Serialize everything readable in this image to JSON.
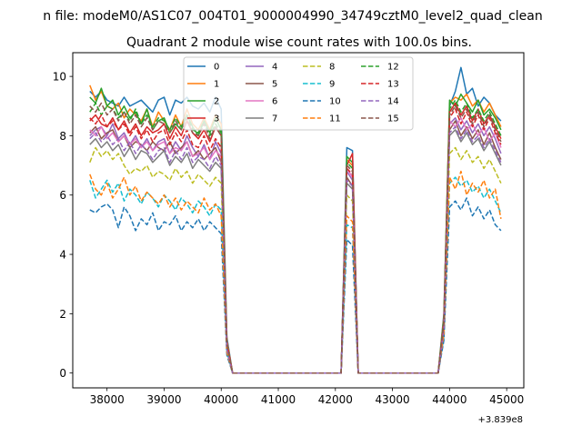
{
  "figure": {
    "suptitle": "n file: modeM0/AS1C07_004T01_9000004990_34749cztM0_level2_quad_clean",
    "offset_text": "+3.839e8"
  },
  "chart_data": {
    "type": "line",
    "title": "Quadrant 2 module wise count rates with 100.0s bins.",
    "xlabel": "",
    "ylabel": "",
    "xlim": [
      37400,
      45300
    ],
    "ylim": [
      -0.5,
      10.8
    ],
    "xticks": [
      38000,
      39000,
      40000,
      41000,
      42000,
      43000,
      44000,
      45000
    ],
    "yticks": [
      0,
      2,
      4,
      6,
      8,
      10
    ],
    "grid": false,
    "legend": {
      "placement": "top-center",
      "columns": 4
    },
    "colors": [
      "#1f77b4",
      "#ff7f0e",
      "#2ca02c",
      "#d62728",
      "#9467bd",
      "#8c564b",
      "#e377c2",
      "#7f7f7f",
      "#bcbd22",
      "#17becf",
      "#1f77b4",
      "#ff7f0e",
      "#2ca02c",
      "#d62728",
      "#9467bd",
      "#8c564b"
    ],
    "x": [
      37700,
      37800,
      37900,
      38000,
      38100,
      38200,
      38300,
      38400,
      38500,
      38600,
      38700,
      38800,
      38900,
      39000,
      39100,
      39200,
      39300,
      39400,
      39500,
      39600,
      39700,
      39800,
      39900,
      40000,
      40100,
      40200,
      40300,
      40400,
      40500,
      40600,
      40700,
      40800,
      40900,
      41000,
      41100,
      41200,
      41300,
      41400,
      41500,
      41600,
      41700,
      41800,
      41900,
      42000,
      42100,
      42200,
      42300,
      42400,
      42500,
      42600,
      42700,
      42800,
      42900,
      43000,
      43100,
      43200,
      43300,
      43400,
      43500,
      43600,
      43700,
      43800,
      43900,
      44000,
      44100,
      44200,
      44300,
      44400,
      44500,
      44600,
      44700,
      44800,
      44900
    ],
    "series": [
      {
        "name": "0",
        "style": "solid",
        "values": [
          9.5,
          9.3,
          9.5,
          9.2,
          9.1,
          9.0,
          9.3,
          9.0,
          9.1,
          9.2,
          9.0,
          8.8,
          9.2,
          9.3,
          8.7,
          9.2,
          9.1,
          9.3,
          9.0,
          8.9,
          9.1,
          8.8,
          9.3,
          8.9,
          1.2,
          0,
          0,
          0,
          0,
          0,
          0,
          0,
          0,
          0,
          0,
          0,
          0,
          0,
          0,
          0,
          0,
          0,
          0,
          0,
          0,
          7.6,
          7.5,
          0,
          0,
          0,
          0,
          0,
          0,
          0,
          0,
          0,
          0,
          0,
          0,
          0,
          0,
          0,
          2.0,
          9.0,
          9.5,
          10.3,
          9.4,
          9.6,
          9.0,
          9.3,
          9.1,
          8.7,
          8.5
        ]
      },
      {
        "name": "1",
        "style": "solid",
        "values": [
          9.7,
          9.2,
          9.5,
          9.0,
          8.9,
          9.1,
          8.6,
          8.9,
          8.7,
          8.5,
          8.9,
          8.3,
          8.8,
          8.5,
          8.2,
          8.7,
          8.3,
          8.9,
          8.4,
          8.2,
          8.6,
          8.2,
          8.7,
          8.4,
          1.1,
          0,
          0,
          0,
          0,
          0,
          0,
          0,
          0,
          0,
          0,
          0,
          0,
          0,
          0,
          0,
          0,
          0,
          0,
          0,
          0,
          7.2,
          7.0,
          0,
          0,
          0,
          0,
          0,
          0,
          0,
          0,
          0,
          0,
          0,
          0,
          0,
          0,
          0,
          1.9,
          9.1,
          9.3,
          9.2,
          9.4,
          9.0,
          9.2,
          8.8,
          9.1,
          8.7,
          8.3
        ]
      },
      {
        "name": "2",
        "style": "solid",
        "values": [
          9.3,
          9.1,
          9.6,
          9.0,
          9.2,
          8.7,
          9.0,
          8.6,
          8.8,
          8.4,
          8.9,
          8.2,
          8.5,
          8.6,
          8.1,
          8.4,
          8.2,
          8.7,
          8.3,
          8.0,
          8.5,
          8.1,
          8.6,
          8.2,
          1.0,
          0,
          0,
          0,
          0,
          0,
          0,
          0,
          0,
          0,
          0,
          0,
          0,
          0,
          0,
          0,
          0,
          0,
          0,
          0,
          0,
          7.3,
          7.1,
          0,
          0,
          0,
          0,
          0,
          0,
          0,
          0,
          0,
          0,
          0,
          0,
          0,
          0,
          0,
          1.8,
          9.2,
          9.0,
          9.4,
          9.1,
          8.8,
          9.2,
          8.7,
          8.9,
          8.6,
          8.2
        ]
      },
      {
        "name": "3",
        "style": "solid",
        "values": [
          8.5,
          8.7,
          8.4,
          8.3,
          8.6,
          8.2,
          8.5,
          8.1,
          8.4,
          8.0,
          8.3,
          8.1,
          8.2,
          8.4,
          7.9,
          8.3,
          8.0,
          8.5,
          8.1,
          7.9,
          8.2,
          7.8,
          8.3,
          8.0,
          1.0,
          0,
          0,
          0,
          0,
          0,
          0,
          0,
          0,
          0,
          0,
          0,
          0,
          0,
          0,
          0,
          0,
          0,
          0,
          0,
          0,
          7.0,
          7.4,
          0,
          0,
          0,
          0,
          0,
          0,
          0,
          0,
          0,
          0,
          0,
          0,
          0,
          0,
          0,
          1.7,
          8.8,
          9.1,
          8.7,
          9.0,
          8.5,
          8.9,
          8.4,
          8.7,
          8.3,
          7.9
        ]
      },
      {
        "name": "4",
        "style": "solid",
        "values": [
          8.0,
          8.2,
          8.3,
          8.0,
          8.4,
          7.9,
          8.1,
          7.7,
          8.0,
          7.6,
          7.9,
          7.5,
          7.8,
          7.9,
          7.4,
          7.8,
          7.5,
          8.0,
          7.6,
          7.3,
          7.7,
          7.2,
          7.8,
          7.4,
          0.9,
          0,
          0,
          0,
          0,
          0,
          0,
          0,
          0,
          0,
          0,
          0,
          0,
          0,
          0,
          0,
          0,
          0,
          0,
          0,
          0,
          6.8,
          6.5,
          0,
          0,
          0,
          0,
          0,
          0,
          0,
          0,
          0,
          0,
          0,
          0,
          0,
          0,
          0,
          1.6,
          8.4,
          8.6,
          8.2,
          8.5,
          8.1,
          8.4,
          8.0,
          8.3,
          7.9,
          7.4
        ]
      },
      {
        "name": "5",
        "style": "solid",
        "values": [
          8.1,
          8.3,
          7.9,
          8.1,
          8.2,
          7.8,
          8.0,
          7.6,
          7.8,
          7.7,
          7.5,
          7.8,
          7.6,
          7.5,
          7.8,
          7.4,
          7.6,
          7.8,
          7.3,
          7.5,
          7.2,
          7.4,
          7.6,
          7.1,
          0.9,
          0,
          0,
          0,
          0,
          0,
          0,
          0,
          0,
          0,
          0,
          0,
          0,
          0,
          0,
          0,
          0,
          0,
          0,
          0,
          0,
          6.6,
          6.3,
          0,
          0,
          0,
          0,
          0,
          0,
          0,
          0,
          0,
          0,
          0,
          0,
          0,
          0,
          0,
          1.5,
          8.2,
          8.5,
          8.0,
          8.3,
          7.9,
          8.2,
          7.7,
          8.1,
          7.6,
          7.2
        ]
      },
      {
        "name": "6",
        "style": "solid",
        "values": [
          8.2,
          8.0,
          8.3,
          7.9,
          8.1,
          7.8,
          8.0,
          7.7,
          7.9,
          7.6,
          7.8,
          7.5,
          7.7,
          7.8,
          7.4,
          7.6,
          7.5,
          7.8,
          7.3,
          7.4,
          7.6,
          7.2,
          7.5,
          7.3,
          0.9,
          0,
          0,
          0,
          0,
          0,
          0,
          0,
          0,
          0,
          0,
          0,
          0,
          0,
          0,
          0,
          0,
          0,
          0,
          0,
          0,
          6.9,
          6.6,
          0,
          0,
          0,
          0,
          0,
          0,
          0,
          0,
          0,
          0,
          0,
          0,
          0,
          0,
          0,
          1.6,
          8.5,
          8.3,
          8.6,
          8.2,
          8.4,
          8.0,
          8.3,
          7.8,
          8.1,
          7.6
        ]
      },
      {
        "name": "7",
        "style": "solid",
        "values": [
          7.7,
          7.9,
          7.6,
          7.8,
          7.5,
          7.7,
          7.3,
          7.6,
          7.2,
          7.5,
          7.4,
          7.1,
          7.3,
          7.5,
          7.0,
          7.3,
          7.1,
          7.4,
          6.9,
          7.2,
          7.0,
          6.8,
          7.1,
          6.9,
          0.8,
          0,
          0,
          0,
          0,
          0,
          0,
          0,
          0,
          0,
          0,
          0,
          0,
          0,
          0,
          0,
          0,
          0,
          0,
          0,
          0,
          6.4,
          6.2,
          0,
          0,
          0,
          0,
          0,
          0,
          0,
          0,
          0,
          0,
          0,
          0,
          0,
          0,
          0,
          1.5,
          8.0,
          8.2,
          7.8,
          8.1,
          7.7,
          7.9,
          7.5,
          7.8,
          7.4,
          7.0
        ]
      },
      {
        "name": "8",
        "style": "dashed",
        "values": [
          7.1,
          7.6,
          7.3,
          7.5,
          7.2,
          7.4,
          7.0,
          6.7,
          6.9,
          6.8,
          7.0,
          6.6,
          6.8,
          6.7,
          6.5,
          6.9,
          6.6,
          6.8,
          6.4,
          6.7,
          6.5,
          6.3,
          6.6,
          6.4,
          0.8,
          0,
          0,
          0,
          0,
          0,
          0,
          0,
          0,
          0,
          0,
          0,
          0,
          0,
          0,
          0,
          0,
          0,
          0,
          0,
          0,
          6.0,
          5.8,
          0,
          0,
          0,
          0,
          0,
          0,
          0,
          0,
          0,
          0,
          0,
          0,
          0,
          0,
          0,
          1.4,
          7.4,
          7.6,
          7.2,
          7.5,
          7.1,
          7.3,
          6.9,
          7.2,
          6.8,
          6.4
        ]
      },
      {
        "name": "9",
        "style": "dashed",
        "values": [
          6.5,
          5.9,
          6.2,
          6.5,
          6.1,
          6.4,
          5.8,
          6.2,
          6.0,
          5.7,
          6.1,
          5.9,
          5.6,
          6.0,
          5.8,
          5.5,
          5.9,
          5.7,
          5.4,
          5.8,
          5.6,
          5.3,
          5.7,
          5.5,
          0.7,
          0,
          0,
          0,
          0,
          0,
          0,
          0,
          0,
          0,
          0,
          0,
          0,
          0,
          0,
          0,
          0,
          0,
          0,
          0,
          0,
          5.0,
          4.9,
          0,
          0,
          0,
          0,
          0,
          0,
          0,
          0,
          0,
          0,
          0,
          0,
          0,
          0,
          0,
          1.2,
          6.4,
          6.6,
          6.3,
          6.5,
          6.1,
          6.3,
          5.9,
          6.2,
          5.8,
          5.4
        ]
      },
      {
        "name": "10",
        "style": "dashed",
        "values": [
          5.5,
          5.4,
          5.6,
          5.7,
          5.5,
          4.9,
          5.6,
          5.3,
          4.8,
          5.2,
          5.0,
          5.4,
          4.8,
          5.1,
          5.0,
          5.3,
          4.8,
          5.1,
          4.9,
          5.2,
          4.8,
          5.1,
          4.9,
          4.7,
          0.6,
          0,
          0,
          0,
          0,
          0,
          0,
          0,
          0,
          0,
          0,
          0,
          0,
          0,
          0,
          0,
          0,
          0,
          0,
          0,
          0,
          4.5,
          4.3,
          0,
          0,
          0,
          0,
          0,
          0,
          0,
          0,
          0,
          0,
          0,
          0,
          0,
          0,
          0,
          1.1,
          5.6,
          5.8,
          5.5,
          5.9,
          5.3,
          5.6,
          5.2,
          5.5,
          5.0,
          4.8
        ]
      },
      {
        "name": "11",
        "style": "dashed",
        "values": [
          6.7,
          6.2,
          6.0,
          6.4,
          5.9,
          6.2,
          6.6,
          6.0,
          6.3,
          5.8,
          6.1,
          5.9,
          5.7,
          6.0,
          5.6,
          5.9,
          5.5,
          5.8,
          5.6,
          5.4,
          5.9,
          5.5,
          5.7,
          5.3,
          0.7,
          0,
          0,
          0,
          0,
          0,
          0,
          0,
          0,
          0,
          0,
          0,
          0,
          0,
          0,
          0,
          0,
          0,
          0,
          0,
          0,
          5.3,
          5.1,
          0,
          0,
          0,
          0,
          0,
          0,
          0,
          0,
          0,
          0,
          0,
          0,
          0,
          0,
          0,
          1.3,
          6.6,
          6.2,
          6.8,
          6.0,
          6.4,
          6.1,
          6.5,
          5.9,
          6.2,
          5.2
        ]
      },
      {
        "name": "12",
        "style": "dashed",
        "values": [
          8.8,
          9.1,
          8.7,
          9.0,
          8.9,
          8.6,
          8.8,
          8.5,
          8.9,
          8.4,
          8.7,
          8.3,
          8.6,
          8.5,
          8.2,
          8.6,
          8.3,
          8.7,
          8.2,
          8.1,
          8.5,
          8.0,
          8.4,
          8.1,
          1.0,
          0,
          0,
          0,
          0,
          0,
          0,
          0,
          0,
          0,
          0,
          0,
          0,
          0,
          0,
          0,
          0,
          0,
          0,
          0,
          0,
          7.1,
          6.9,
          0,
          0,
          0,
          0,
          0,
          0,
          0,
          0,
          0,
          0,
          0,
          0,
          0,
          0,
          0,
          1.8,
          8.9,
          9.2,
          8.8,
          9.1,
          8.6,
          8.9,
          8.5,
          8.8,
          8.4,
          8.0
        ]
      },
      {
        "name": "13",
        "style": "dashed",
        "values": [
          8.6,
          8.4,
          8.7,
          8.3,
          8.5,
          8.2,
          8.4,
          8.0,
          8.3,
          7.9,
          8.2,
          7.8,
          8.1,
          8.2,
          7.7,
          8.1,
          7.8,
          8.2,
          7.7,
          7.6,
          8.0,
          7.5,
          7.9,
          7.6,
          1.0,
          0,
          0,
          0,
          0,
          0,
          0,
          0,
          0,
          0,
          0,
          0,
          0,
          0,
          0,
          0,
          0,
          0,
          0,
          0,
          0,
          6.9,
          6.7,
          0,
          0,
          0,
          0,
          0,
          0,
          0,
          0,
          0,
          0,
          0,
          0,
          0,
          0,
          0,
          1.7,
          8.6,
          8.9,
          8.4,
          8.8,
          8.3,
          8.7,
          8.2,
          8.6,
          8.1,
          7.7
        ]
      },
      {
        "name": "14",
        "style": "dashed",
        "values": [
          7.9,
          8.1,
          7.8,
          8.0,
          7.7,
          7.9,
          7.5,
          7.8,
          7.4,
          7.7,
          7.5,
          7.2,
          7.5,
          7.6,
          7.1,
          7.5,
          7.2,
          7.6,
          7.1,
          7.3,
          7.2,
          6.9,
          7.3,
          7.0,
          0.8,
          0,
          0,
          0,
          0,
          0,
          0,
          0,
          0,
          0,
          0,
          0,
          0,
          0,
          0,
          0,
          0,
          0,
          0,
          0,
          0,
          6.5,
          6.3,
          0,
          0,
          0,
          0,
          0,
          0,
          0,
          0,
          0,
          0,
          0,
          0,
          0,
          0,
          0,
          1.5,
          8.1,
          8.3,
          7.9,
          8.2,
          7.8,
          8.0,
          7.6,
          7.9,
          7.5,
          7.1
        ]
      },
      {
        "name": "15",
        "style": "dashed",
        "values": [
          9.0,
          8.8,
          9.1,
          8.7,
          8.9,
          8.5,
          8.8,
          8.4,
          8.7,
          8.3,
          8.6,
          8.2,
          8.5,
          8.4,
          8.1,
          8.5,
          8.2,
          8.6,
          8.1,
          8.0,
          8.4,
          7.9,
          8.3,
          8.0,
          1.0,
          0,
          0,
          0,
          0,
          0,
          0,
          0,
          0,
          0,
          0,
          0,
          0,
          0,
          0,
          0,
          0,
          0,
          0,
          0,
          0,
          7.0,
          6.8,
          0,
          0,
          0,
          0,
          0,
          0,
          0,
          0,
          0,
          0,
          0,
          0,
          0,
          0,
          0,
          1.7,
          8.7,
          9.0,
          8.6,
          8.9,
          8.4,
          8.8,
          8.3,
          8.7,
          8.2,
          7.8
        ]
      }
    ]
  }
}
